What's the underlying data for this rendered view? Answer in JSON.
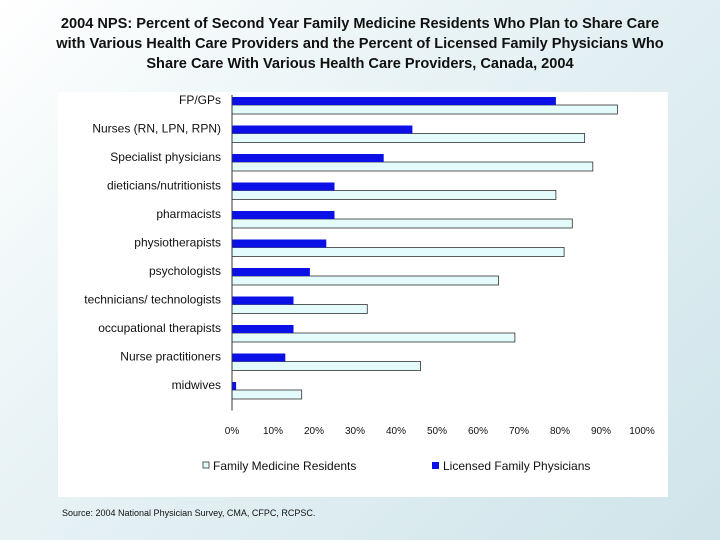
{
  "title": {
    "line1": "2004 NPS: Percent of Second Year Family Medicine Residents Who Plan to Share Care",
    "line2": "with Various Health Care Providers and the Percent of Licensed Family Physicians Who",
    "line3": "Share Care With Various Health Care Providers, Canada, 2004"
  },
  "source": "Source: 2004 National Physician Survey, CMA, CFPC, RCPSC.",
  "colors": {
    "residents": "#e4fbfc",
    "residents_stroke": "#333333",
    "physicians": "#0a10e6",
    "axis": "#333333"
  },
  "chart_data": {
    "type": "bar",
    "orientation": "horizontal",
    "categories": [
      "FP/GPs",
      "Nurses (RN, LPN, RPN)",
      "Specialist physicians",
      "dieticians/nutritionists",
      "pharmacists",
      "physiotherapists",
      "psychologists",
      "technicians/ technologists",
      "occupational therapists",
      "Nurse practitioners",
      "midwives"
    ],
    "series": [
      {
        "name": "Family Medicine Residents",
        "values": [
          94,
          86,
          88,
          79,
          83,
          81,
          65,
          33,
          69,
          46,
          17
        ]
      },
      {
        "name": "Licensed Family Physicians",
        "values": [
          79,
          44,
          37,
          25,
          25,
          23,
          19,
          15,
          15,
          13,
          1
        ]
      }
    ],
    "x_ticks": [
      "0%",
      "10%",
      "20%",
      "30%",
      "40%",
      "50%",
      "60%",
      "70%",
      "80%",
      "90%",
      "100%"
    ],
    "xlim": [
      0,
      100
    ],
    "xlabel": "",
    "ylabel": "",
    "grid": false,
    "legend_position": "bottom"
  }
}
